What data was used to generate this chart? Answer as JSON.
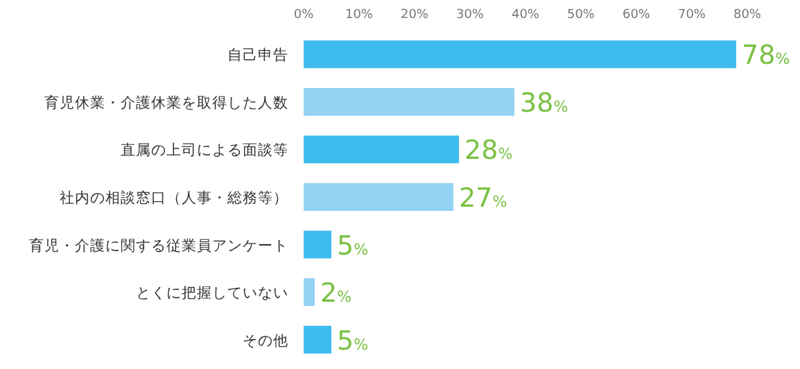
{
  "chart_data": {
    "type": "bar",
    "orientation": "horizontal",
    "categories": [
      "自己申告",
      "育児休業・介護休業を取得した人数",
      "直属の上司による面談等",
      "社内の相談窓口（人事・総務等）",
      "育児・介護に関する従業員アンケート",
      "とくに把握していない",
      "その他"
    ],
    "values": [
      78,
      38,
      28,
      27,
      5,
      2,
      5
    ],
    "colors": [
      "#3fbcef",
      "#93d2f3",
      "#3fbcef",
      "#93d2f3",
      "#3fbcef",
      "#93d2f3",
      "#3fbcef"
    ],
    "value_labels": [
      "78%",
      "38%",
      "28%",
      "27%",
      "5%",
      "2%",
      "5%"
    ],
    "xlim": [
      0,
      80
    ],
    "xticks": [
      {
        "value": 0,
        "label": "0%"
      },
      {
        "value": 10,
        "label": "10%"
      },
      {
        "value": 20,
        "label": "20%"
      },
      {
        "value": 30,
        "label": "30%"
      },
      {
        "value": 40,
        "label": "40%"
      },
      {
        "value": 50,
        "label": "50%"
      },
      {
        "value": 60,
        "label": "60%"
      },
      {
        "value": 70,
        "label": "70%"
      },
      {
        "value": 80,
        "label": "80%"
      }
    ]
  }
}
